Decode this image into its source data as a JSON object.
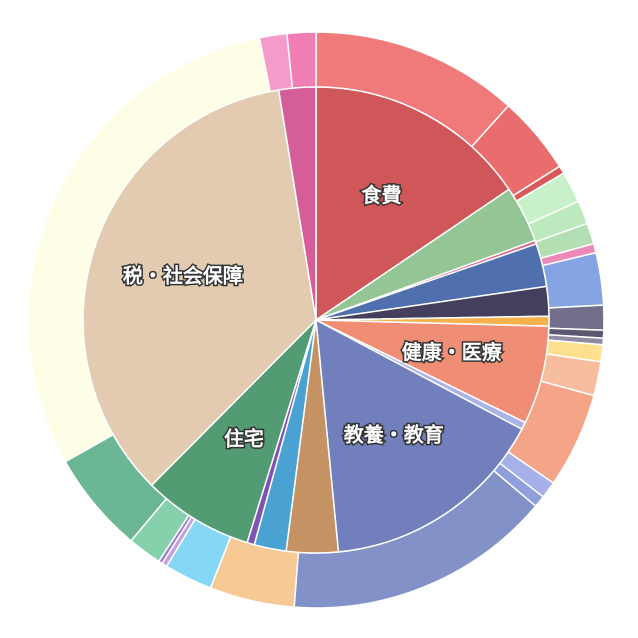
{
  "chart_data": {
    "type": "pie",
    "title": "",
    "inner": [
      {
        "label": "食費",
        "value": 18.2,
        "color": "#d05759"
      },
      {
        "label": "",
        "value": 4.6,
        "color": "#94c595"
      },
      {
        "label": "",
        "value": 0.3,
        "color": "#d96c96"
      },
      {
        "label": "",
        "value": 3.5,
        "color": "#4f6fae"
      },
      {
        "label": "",
        "value": 2.4,
        "color": "#433f5c"
      },
      {
        "label": "",
        "value": 0.8,
        "color": "#f5b14e"
      },
      {
        "label": "健康・医療",
        "value": 8.0,
        "color": "#ef8e74"
      },
      {
        "label": "",
        "value": 0.6,
        "color": "#aab4e8"
      },
      {
        "label": "教養・教育",
        "value": 18.4,
        "color": "#7180bd"
      },
      {
        "label": "",
        "value": 4.2,
        "color": "#c49263"
      },
      {
        "label": "",
        "value": 2.6,
        "color": "#4aa2d3"
      },
      {
        "label": "",
        "value": 0.6,
        "color": "#7d54b5"
      },
      {
        "label": "住宅",
        "value": 9.0,
        "color": "#529b73"
      },
      {
        "label": "税・社会保障",
        "value": 41.0,
        "color": "#e2cbb0"
      },
      {
        "label": "",
        "value": 3.0,
        "color": "#d65e98"
      }
    ],
    "outer": [
      {
        "value": 15.9,
        "color": "#ef7a79"
      },
      {
        "value": 6.0,
        "color": "#e86d6c"
      },
      {
        "value": 0.6,
        "color": "#d95a5b"
      },
      {
        "value": 2.4,
        "color": "#c8f1c9"
      },
      {
        "value": 1.8,
        "color": "#bde9be"
      },
      {
        "value": 1.6,
        "color": "#b3e0b3"
      },
      {
        "value": 0.7,
        "color": "#ec8ab7"
      },
      {
        "value": 4.0,
        "color": "#86a4e4"
      },
      {
        "value": 1.9,
        "color": "#726f8a"
      },
      {
        "value": 0.6,
        "color": "#5a5770"
      },
      {
        "value": 0.5,
        "color": "#8e8ba3"
      },
      {
        "value": 1.3,
        "color": "#fce08e"
      },
      {
        "value": 2.6,
        "color": "#f6be9f"
      },
      {
        "value": 7.3,
        "color": "#f4a487"
      },
      {
        "value": 1.3,
        "color": "#a6b1ea"
      },
      {
        "value": 0.9,
        "color": "#909ede"
      },
      {
        "value": 20.5,
        "color": "#8391c9"
      },
      {
        "value": 6.5,
        "color": "#f7c994"
      },
      {
        "value": 3.7,
        "color": "#86d6f6"
      },
      {
        "value": 0.4,
        "color": "#c3a2e2"
      },
      {
        "value": 0.3,
        "color": "#a17bd0"
      },
      {
        "value": 2.6,
        "color": "#86d1ab"
      },
      {
        "value": 7.8,
        "color": "#6bb795"
      },
      {
        "value": 41.0,
        "color": "#fefde6"
      },
      {
        "value": 2.1,
        "color": "#f59bc9"
      },
      {
        "value": 2.2,
        "color": "#f07db3"
      }
    ]
  }
}
